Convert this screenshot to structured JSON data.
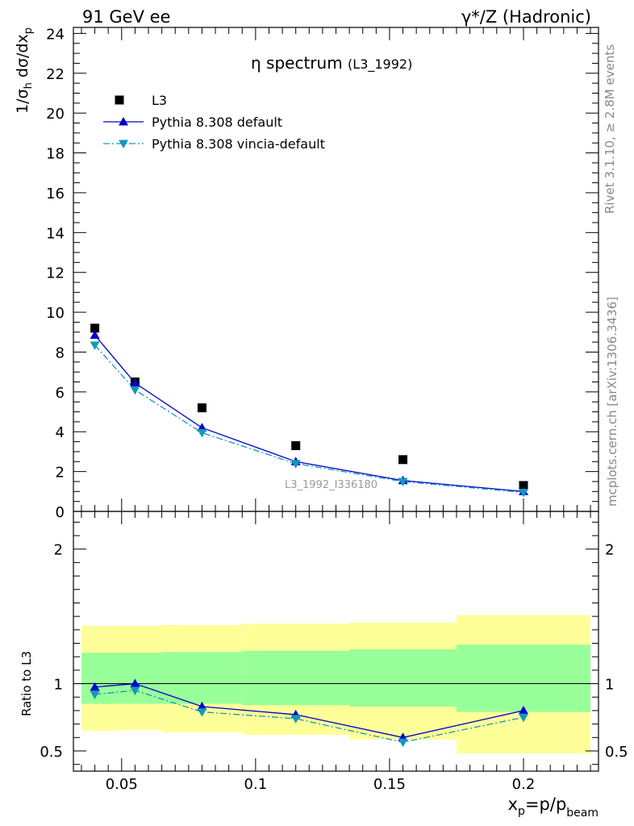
{
  "header": {
    "left": "91 GeV ee",
    "right": "γ*/Z (Hadronic)"
  },
  "side_labels": {
    "rivet": "Rivet 3.1.10, ≥ 2.8M events",
    "mcplots": "mcplots.cern.ch [arXiv:1306.3436]"
  },
  "chart_data": [
    {
      "type": "scatter",
      "panel": "main",
      "title": "η spectrum",
      "title_note": "(L3_1992)",
      "ylabel": "1/σ_h dσ/dx_p",
      "xlabel": "x_p=p/p_beam",
      "xlim": [
        0.032,
        0.228
      ],
      "ylim": [
        0,
        24.3
      ],
      "yticks": [
        0,
        2,
        4,
        6,
        8,
        10,
        12,
        14,
        16,
        18,
        20,
        22,
        24
      ],
      "xticks": [
        0.05,
        0.1,
        0.15,
        0.2
      ],
      "xtick_labels": [
        "0.05",
        "0.1",
        "0.15",
        "0.2"
      ],
      "analysis_label": "L3_1992_I336180",
      "legend_position": "top-left",
      "x": [
        0.04,
        0.055,
        0.08,
        0.115,
        0.155,
        0.2
      ],
      "series": [
        {
          "name": "L3",
          "style": "data",
          "color": "#000000",
          "values": [
            9.2,
            6.5,
            5.2,
            3.3,
            2.6,
            1.3
          ]
        },
        {
          "name": "Pythia 8.308 default",
          "style": "solid",
          "marker": "triangle-up",
          "color": "#0000cc",
          "values": [
            8.85,
            6.45,
            4.2,
            2.5,
            1.55,
            1.0
          ]
        },
        {
          "name": "Pythia 8.308 vincia-default",
          "style": "dashdot",
          "marker": "triangle-down",
          "color": "#1199bb",
          "values": [
            8.35,
            6.1,
            3.95,
            2.4,
            1.5,
            0.95
          ]
        }
      ]
    },
    {
      "type": "line",
      "panel": "ratio",
      "ylabel": "Ratio to L3",
      "ylim": [
        0.35,
        2.28
      ],
      "yticks": [
        0.5,
        1,
        2
      ],
      "ytick_labels": [
        "0.5",
        "1",
        "2"
      ],
      "reference_line": 1,
      "bands": [
        {
          "x0": 0.035,
          "x1": 0.0475,
          "inner": [
            0.85,
            1.23
          ],
          "outer": [
            0.65,
            1.43
          ]
        },
        {
          "x0": 0.0475,
          "x1": 0.065,
          "inner": [
            0.85,
            1.23
          ],
          "outer": [
            0.655,
            1.43
          ]
        },
        {
          "x0": 0.065,
          "x1": 0.095,
          "inner": [
            0.85,
            1.235
          ],
          "outer": [
            0.64,
            1.435
          ]
        },
        {
          "x0": 0.095,
          "x1": 0.135,
          "inner": [
            0.84,
            1.245
          ],
          "outer": [
            0.62,
            1.445
          ]
        },
        {
          "x0": 0.135,
          "x1": 0.175,
          "inner": [
            0.83,
            1.255
          ],
          "outer": [
            0.585,
            1.455
          ]
        },
        {
          "x0": 0.175,
          "x1": 0.225,
          "inner": [
            0.79,
            1.29
          ],
          "outer": [
            0.48,
            1.51
          ]
        }
      ],
      "inner_band_color": "#99ff99",
      "outer_band_color": "#ffff99",
      "x": [
        0.04,
        0.055,
        0.08,
        0.115,
        0.155,
        0.2
      ],
      "series": [
        {
          "name": "Pythia 8.308 default",
          "style": "solid",
          "marker": "triangle-up",
          "color": "#0000cc",
          "values": [
            0.975,
            1.0,
            0.83,
            0.77,
            0.6,
            0.8
          ]
        },
        {
          "name": "Pythia 8.308 vincia-default",
          "style": "dashdot",
          "marker": "triangle-down",
          "color": "#1199bb",
          "values": [
            0.92,
            0.95,
            0.79,
            0.74,
            0.565,
            0.75
          ]
        }
      ]
    }
  ]
}
